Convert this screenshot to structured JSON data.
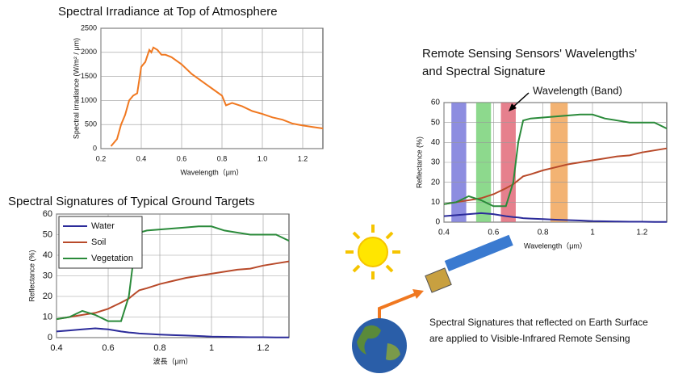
{
  "chart_data": [
    {
      "type": "line",
      "title": [
        "Spectral Irradiance at Top of Atmosphere"
      ],
      "xlabel": "Wavelength（μm）",
      "ylabel": "Spectral irradiance (W/m² / μm)",
      "x": [
        0.25,
        0.28,
        0.3,
        0.32,
        0.34,
        0.36,
        0.38,
        0.4,
        0.42,
        0.44,
        0.45,
        0.46,
        0.48,
        0.5,
        0.52,
        0.55,
        0.6,
        0.65,
        0.7,
        0.75,
        0.8,
        0.82,
        0.85,
        0.9,
        0.95,
        1.0,
        1.05,
        1.1,
        1.15,
        1.2,
        1.25,
        1.3
      ],
      "values": [
        50,
        200,
        500,
        700,
        1000,
        1100,
        1150,
        1700,
        1800,
        2050,
        2000,
        2100,
        2050,
        1950,
        1950,
        1900,
        1750,
        1550,
        1400,
        1250,
        1100,
        900,
        950,
        880,
        780,
        720,
        650,
        600,
        520,
        480,
        450,
        420
      ],
      "color": "#f07820",
      "xlim": [
        0.2,
        1.3
      ],
      "xticks": [
        0.2,
        0.4,
        0.6,
        0.8,
        {
          "value": 1,
          "label": "1.0"
        },
        1.2
      ],
      "ylim": [
        0,
        2500
      ],
      "yticks": [
        0,
        500,
        1000,
        1500,
        2000,
        2500
      ],
      "grid": true
    },
    {
      "type": "line",
      "title": [
        "Spectral Signatures of Typical Ground Targets"
      ],
      "xlabel": "波長（μm）",
      "ylabel": "Reflectance (%)",
      "x": [
        0.4,
        0.45,
        0.5,
        0.55,
        0.6,
        0.65,
        0.68,
        0.7,
        0.72,
        0.75,
        0.8,
        0.85,
        0.9,
        0.95,
        1.0,
        1.05,
        1.1,
        1.15,
        1.2,
        1.25,
        1.3
      ],
      "series": [
        {
          "name": "Water",
          "color": "#2b2b9a",
          "values": [
            3,
            3.5,
            4,
            4.5,
            4,
            3,
            2.5,
            2.3,
            2,
            1.8,
            1.5,
            1.2,
            1,
            0.8,
            0.5,
            0.4,
            0.3,
            0.2,
            0.2,
            0.1,
            0.1
          ]
        },
        {
          "name": "Soil",
          "color": "#b84a2a",
          "values": [
            9,
            10,
            11,
            12,
            14,
            17,
            19,
            21,
            23,
            24,
            26,
            27.5,
            29,
            30,
            31,
            32,
            33,
            33.5,
            35,
            36,
            37
          ]
        },
        {
          "name": "Vegetation",
          "color": "#2a8a3a",
          "values": [
            9,
            10,
            13,
            11,
            8,
            8,
            20,
            40,
            51,
            52,
            52.5,
            53,
            53.5,
            54,
            54,
            52,
            51,
            50,
            50,
            50,
            47
          ]
        }
      ],
      "xlim": [
        0.4,
        1.3
      ],
      "xticks": [
        0.4,
        0.6,
        0.8,
        1,
        1.2
      ],
      "ylim": [
        0,
        60
      ],
      "yticks": [
        0,
        10,
        20,
        30,
        40,
        50,
        60
      ],
      "grid": true,
      "legend": "top-left"
    },
    {
      "type": "line",
      "title": [
        "Remote Sensing Sensors' Wavelengths'",
        "and Spectral Signature"
      ],
      "xlabel": "Wavelength（μm）",
      "ylabel": "Reflectance (%)",
      "annotation": "Wavelength (Band)",
      "x": [
        0.4,
        0.45,
        0.5,
        0.55,
        0.6,
        0.65,
        0.68,
        0.7,
        0.72,
        0.75,
        0.8,
        0.85,
        0.9,
        0.95,
        1.0,
        1.05,
        1.1,
        1.15,
        1.2,
        1.25,
        1.3
      ],
      "bands": [
        {
          "range": [
            0.43,
            0.49
          ],
          "color": "#7070d8"
        },
        {
          "range": [
            0.53,
            0.59
          ],
          "color": "#70d070"
        },
        {
          "range": [
            0.63,
            0.69
          ],
          "color": "#e06070"
        },
        {
          "range": [
            0.83,
            0.9
          ],
          "color": "#f0a050"
        }
      ],
      "series": [
        {
          "color": "#2b2b9a",
          "values": [
            3,
            3.5,
            4,
            4.5,
            4,
            3,
            2.5,
            2.3,
            2,
            1.8,
            1.5,
            1.2,
            1,
            0.8,
            0.5,
            0.4,
            0.3,
            0.2,
            0.2,
            0.1,
            0.1
          ]
        },
        {
          "color": "#b84a2a",
          "values": [
            9,
            10,
            11,
            12,
            14,
            17,
            19,
            21,
            23,
            24,
            26,
            27.5,
            29,
            30,
            31,
            32,
            33,
            33.5,
            35,
            36,
            37
          ]
        },
        {
          "color": "#2a8a3a",
          "values": [
            9,
            10,
            13,
            11,
            8,
            8,
            20,
            40,
            51,
            52,
            52.5,
            53,
            53.5,
            54,
            54,
            52,
            51,
            50,
            50,
            50,
            47
          ]
        }
      ],
      "xlim": [
        0.4,
        1.3
      ],
      "xticks": [
        0.4,
        0.6,
        0.8,
        1,
        1.2
      ],
      "ylim": [
        0,
        60
      ],
      "yticks": [
        0,
        10,
        20,
        30,
        40,
        50,
        60
      ],
      "grid": true
    }
  ],
  "caption": [
    "Spectral Signatures that reflected on Earth Surface",
    "are applied to Visible-Infrared Remote Sensing"
  ]
}
